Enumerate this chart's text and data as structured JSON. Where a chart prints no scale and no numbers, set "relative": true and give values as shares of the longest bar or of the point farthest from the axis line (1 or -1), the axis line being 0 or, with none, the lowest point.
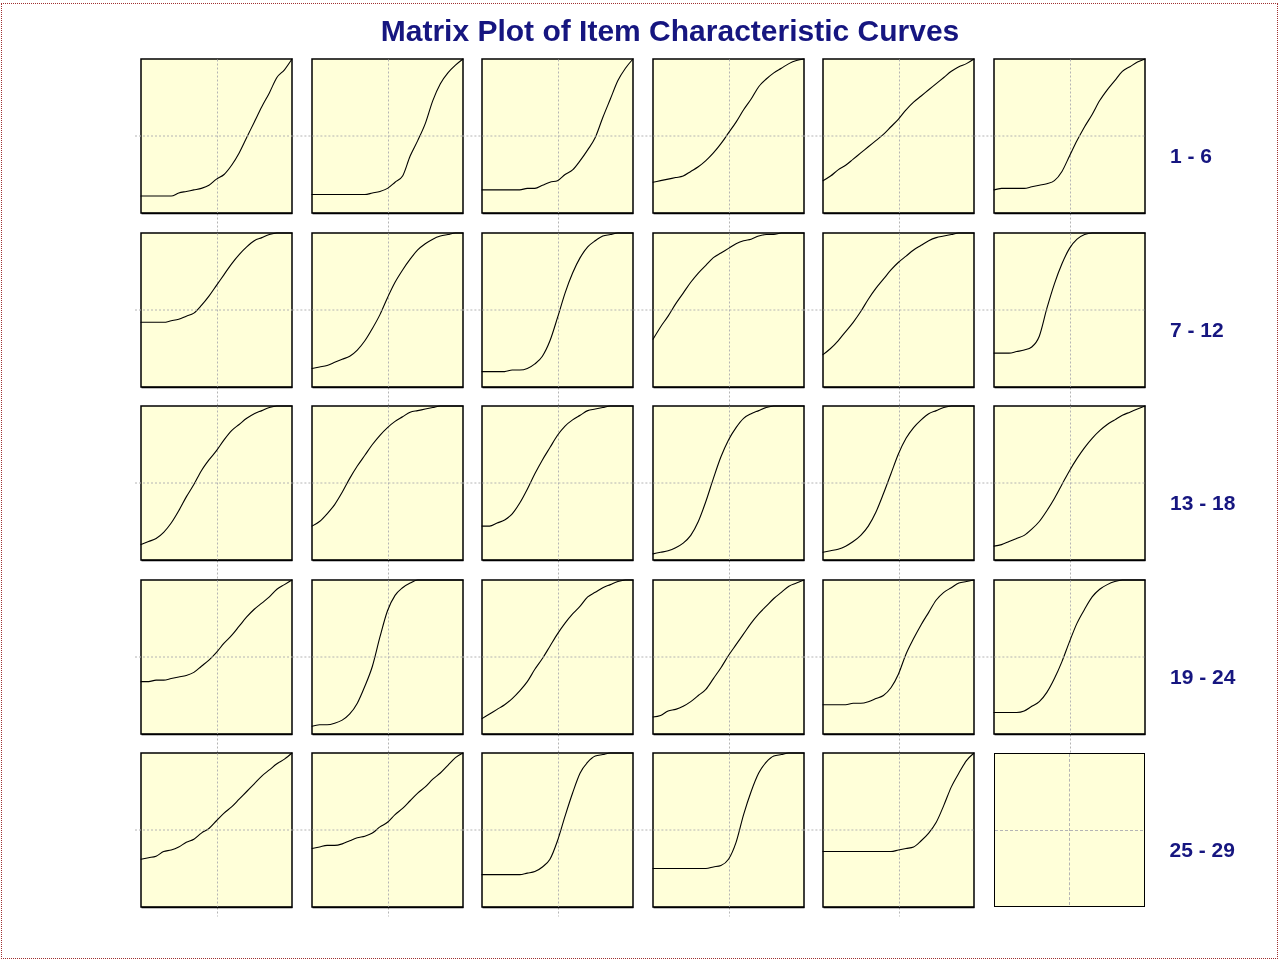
{
  "chart_data": [
    {
      "type": "other",
      "title": "Matrix Plot of Item Characteristic Curves"
    },
    {
      "type": "line",
      "relative": true,
      "grid": true,
      "tick_labels": false,
      "color": "#000000",
      "categories": [
        null,
        null,
        null,
        null,
        null,
        null,
        null,
        null,
        null,
        null,
        null,
        null,
        null,
        null,
        null,
        null,
        null,
        null,
        null,
        null,
        null
      ],
      "values": [
        0.11,
        0.11,
        0.11,
        0.11,
        0.11,
        0.13,
        0.14,
        0.15,
        0.16,
        0.18,
        0.22,
        0.25,
        0.31,
        0.39,
        0.49,
        0.59,
        0.69,
        0.78,
        0.88,
        0.93,
        1
      ]
    },
    {
      "type": "line",
      "relative": true,
      "grid": true,
      "tick_labels": false,
      "color": "#000000",
      "categories": [
        null,
        null,
        null,
        null,
        null,
        null,
        null,
        null,
        null,
        null,
        null,
        null,
        null,
        null,
        null,
        null,
        null,
        null,
        null,
        null,
        null
      ],
      "values": [
        0.12,
        0.12,
        0.12,
        0.12,
        0.12,
        0.12,
        0.12,
        0.12,
        0.13,
        0.14,
        0.16,
        0.2,
        0.24,
        0.37,
        0.47,
        0.58,
        0.73,
        0.84,
        0.91,
        0.96,
        1
      ]
    },
    {
      "type": "line",
      "relative": true,
      "grid": true,
      "tick_labels": false,
      "color": "#000000",
      "categories": [
        null,
        null,
        null,
        null,
        null,
        null,
        null,
        null,
        null,
        null,
        null,
        null,
        null,
        null,
        null,
        null,
        null,
        null,
        null,
        null,
        null
      ],
      "values": [
        0.15,
        0.15,
        0.15,
        0.15,
        0.15,
        0.15,
        0.16,
        0.16,
        0.18,
        0.2,
        0.21,
        0.25,
        0.28,
        0.34,
        0.41,
        0.49,
        0.62,
        0.74,
        0.86,
        0.94,
        1
      ]
    },
    {
      "type": "line",
      "relative": true,
      "grid": true,
      "tick_labels": false,
      "color": "#000000",
      "categories": [
        null,
        null,
        null,
        null,
        null,
        null,
        null,
        null,
        null,
        null,
        null,
        null,
        null,
        null,
        null,
        null,
        null,
        null,
        null,
        null,
        null
      ],
      "values": [
        0.2,
        0.21,
        0.22,
        0.23,
        0.24,
        0.27,
        0.3,
        0.34,
        0.39,
        0.45,
        0.52,
        0.59,
        0.67,
        0.74,
        0.82,
        0.87,
        0.91,
        0.94,
        0.97,
        0.99,
        1
      ]
    },
    {
      "type": "line",
      "relative": true,
      "grid": true,
      "tick_labels": false,
      "color": "#000000",
      "categories": [
        null,
        null,
        null,
        null,
        null,
        null,
        null,
        null,
        null,
        null,
        null,
        null,
        null,
        null,
        null,
        null,
        null,
        null,
        null,
        null,
        null
      ],
      "values": [
        0.21,
        0.24,
        0.28,
        0.31,
        0.35,
        0.39,
        0.43,
        0.47,
        0.51,
        0.56,
        0.61,
        0.67,
        0.72,
        0.76,
        0.8,
        0.84,
        0.88,
        0.92,
        0.95,
        0.97,
        1
      ]
    },
    {
      "type": "line",
      "relative": true,
      "grid": true,
      "tick_labels": false,
      "color": "#000000",
      "annotations": [
        "1 - 6"
      ],
      "categories": [
        null,
        null,
        null,
        null,
        null,
        null,
        null,
        null,
        null,
        null,
        null,
        null,
        null,
        null,
        null,
        null,
        null,
        null,
        null,
        null,
        null
      ],
      "values": [
        0.15,
        0.16,
        0.16,
        0.16,
        0.16,
        0.17,
        0.18,
        0.19,
        0.21,
        0.27,
        0.37,
        0.47,
        0.56,
        0.64,
        0.73,
        0.8,
        0.86,
        0.92,
        0.95,
        0.98,
        1
      ]
    },
    {
      "type": "line",
      "relative": true,
      "grid": true,
      "tick_labels": false,
      "color": "#000000",
      "categories": [
        null,
        null,
        null,
        null,
        null,
        null,
        null,
        null,
        null,
        null,
        null,
        null,
        null,
        null,
        null,
        null,
        null,
        null,
        null,
        null,
        null
      ],
      "values": [
        0.42,
        0.42,
        0.42,
        0.42,
        0.43,
        0.44,
        0.46,
        0.48,
        0.53,
        0.59,
        0.66,
        0.73,
        0.8,
        0.86,
        0.91,
        0.95,
        0.97,
        0.99,
        1,
        1,
        1
      ]
    },
    {
      "type": "line",
      "relative": true,
      "grid": true,
      "tick_labels": false,
      "color": "#000000",
      "categories": [
        null,
        null,
        null,
        null,
        null,
        null,
        null,
        null,
        null,
        null,
        null,
        null,
        null,
        null,
        null,
        null,
        null,
        null,
        null,
        null,
        null
      ],
      "values": [
        0.12,
        0.13,
        0.14,
        0.16,
        0.18,
        0.2,
        0.24,
        0.3,
        0.38,
        0.47,
        0.58,
        0.68,
        0.76,
        0.83,
        0.89,
        0.93,
        0.96,
        0.98,
        0.99,
        1,
        1
      ]
    },
    {
      "type": "line",
      "relative": true,
      "grid": true,
      "tick_labels": false,
      "color": "#000000",
      "categories": [
        null,
        null,
        null,
        null,
        null,
        null,
        null,
        null,
        null,
        null,
        null,
        null,
        null,
        null,
        null,
        null,
        null,
        null,
        null,
        null,
        null
      ],
      "values": [
        0.1,
        0.1,
        0.1,
        0.1,
        0.11,
        0.11,
        0.12,
        0.15,
        0.2,
        0.3,
        0.45,
        0.61,
        0.74,
        0.84,
        0.91,
        0.95,
        0.98,
        0.99,
        1,
        1,
        1
      ]
    },
    {
      "type": "line",
      "relative": true,
      "grid": true,
      "tick_labels": false,
      "color": "#000000",
      "categories": [
        null,
        null,
        null,
        null,
        null,
        null,
        null,
        null,
        null,
        null,
        null,
        null,
        null,
        null,
        null,
        null,
        null,
        null,
        null,
        null,
        null
      ],
      "values": [
        0.31,
        0.39,
        0.46,
        0.54,
        0.61,
        0.68,
        0.74,
        0.79,
        0.84,
        0.87,
        0.9,
        0.93,
        0.95,
        0.96,
        0.98,
        0.99,
        0.99,
        1,
        1,
        1,
        1
      ]
    },
    {
      "type": "line",
      "relative": true,
      "grid": true,
      "tick_labels": false,
      "color": "#000000",
      "categories": [
        null,
        null,
        null,
        null,
        null,
        null,
        null,
        null,
        null,
        null,
        null,
        null,
        null,
        null,
        null,
        null,
        null,
        null,
        null,
        null,
        null
      ],
      "values": [
        0.21,
        0.25,
        0.3,
        0.36,
        0.42,
        0.49,
        0.57,
        0.64,
        0.7,
        0.76,
        0.81,
        0.85,
        0.89,
        0.92,
        0.95,
        0.97,
        0.98,
        0.99,
        1,
        1,
        1
      ]
    },
    {
      "type": "line",
      "relative": true,
      "grid": true,
      "tick_labels": false,
      "color": "#000000",
      "annotations": [
        "7 - 12"
      ],
      "categories": [
        null,
        null,
        null,
        null,
        null,
        null,
        null,
        null,
        null,
        null,
        null,
        null,
        null,
        null,
        null,
        null,
        null,
        null,
        null,
        null,
        null
      ],
      "values": [
        0.22,
        0.22,
        0.22,
        0.23,
        0.24,
        0.26,
        0.33,
        0.51,
        0.67,
        0.8,
        0.9,
        0.96,
        0.99,
        1,
        1,
        1,
        1,
        1,
        1,
        1,
        1
      ]
    },
    {
      "type": "line",
      "relative": true,
      "grid": true,
      "tick_labels": false,
      "color": "#000000",
      "categories": [
        null,
        null,
        null,
        null,
        null,
        null,
        null,
        null,
        null,
        null,
        null,
        null,
        null,
        null,
        null,
        null,
        null,
        null,
        null,
        null,
        null
      ],
      "values": [
        0.1,
        0.12,
        0.14,
        0.18,
        0.24,
        0.32,
        0.41,
        0.49,
        0.58,
        0.65,
        0.71,
        0.78,
        0.84,
        0.88,
        0.92,
        0.95,
        0.97,
        0.99,
        1,
        1,
        1
      ]
    },
    {
      "type": "line",
      "relative": true,
      "grid": true,
      "tick_labels": false,
      "color": "#000000",
      "categories": [
        null,
        null,
        null,
        null,
        null,
        null,
        null,
        null,
        null,
        null,
        null,
        null,
        null,
        null,
        null,
        null,
        null,
        null,
        null,
        null,
        null
      ],
      "values": [
        0.22,
        0.25,
        0.3,
        0.36,
        0.44,
        0.53,
        0.61,
        0.68,
        0.75,
        0.81,
        0.86,
        0.9,
        0.93,
        0.96,
        0.97,
        0.98,
        0.99,
        1,
        1,
        1,
        1
      ]
    },
    {
      "type": "line",
      "relative": true,
      "grid": true,
      "tick_labels": false,
      "color": "#000000",
      "categories": [
        null,
        null,
        null,
        null,
        null,
        null,
        null,
        null,
        null,
        null,
        null,
        null,
        null,
        null,
        null,
        null,
        null,
        null,
        null,
        null,
        null
      ],
      "values": [
        0.22,
        0.22,
        0.24,
        0.26,
        0.3,
        0.37,
        0.46,
        0.56,
        0.65,
        0.73,
        0.81,
        0.87,
        0.91,
        0.94,
        0.97,
        0.98,
        0.99,
        1,
        1,
        1,
        1
      ]
    },
    {
      "type": "line",
      "relative": true,
      "grid": true,
      "tick_labels": false,
      "color": "#000000",
      "categories": [
        null,
        null,
        null,
        null,
        null,
        null,
        null,
        null,
        null,
        null,
        null,
        null,
        null,
        null,
        null,
        null,
        null,
        null,
        null,
        null,
        null
      ],
      "values": [
        0.04,
        0.05,
        0.06,
        0.08,
        0.11,
        0.16,
        0.25,
        0.38,
        0.53,
        0.67,
        0.78,
        0.86,
        0.92,
        0.95,
        0.97,
        0.99,
        1,
        1,
        1,
        1,
        1
      ]
    },
    {
      "type": "line",
      "relative": true,
      "grid": true,
      "tick_labels": false,
      "color": "#000000",
      "categories": [
        null,
        null,
        null,
        null,
        null,
        null,
        null,
        null,
        null,
        null,
        null,
        null,
        null,
        null,
        null,
        null,
        null,
        null,
        null,
        null,
        null
      ],
      "values": [
        0.05,
        0.06,
        0.07,
        0.09,
        0.12,
        0.16,
        0.22,
        0.31,
        0.43,
        0.56,
        0.69,
        0.79,
        0.86,
        0.91,
        0.95,
        0.97,
        0.99,
        1,
        1,
        1,
        1
      ]
    },
    {
      "type": "line",
      "relative": true,
      "grid": true,
      "tick_labels": false,
      "color": "#000000",
      "annotations": [
        "13 - 18"
      ],
      "categories": [
        null,
        null,
        null,
        null,
        null,
        null,
        null,
        null,
        null,
        null,
        null,
        null,
        null,
        null,
        null,
        null,
        null,
        null,
        null,
        null,
        null
      ],
      "values": [
        0.09,
        0.1,
        0.12,
        0.14,
        0.16,
        0.2,
        0.25,
        0.32,
        0.4,
        0.49,
        0.58,
        0.66,
        0.73,
        0.79,
        0.84,
        0.88,
        0.91,
        0.94,
        0.96,
        0.98,
        1
      ]
    },
    {
      "type": "line",
      "relative": true,
      "grid": true,
      "tick_labels": false,
      "color": "#000000",
      "categories": [
        null,
        null,
        null,
        null,
        null,
        null,
        null,
        null,
        null,
        null,
        null,
        null,
        null,
        null,
        null,
        null,
        null,
        null,
        null,
        null,
        null
      ],
      "values": [
        0.34,
        0.34,
        0.35,
        0.35,
        0.36,
        0.37,
        0.38,
        0.4,
        0.44,
        0.48,
        0.53,
        0.59,
        0.64,
        0.7,
        0.76,
        0.81,
        0.85,
        0.89,
        0.94,
        0.97,
        1
      ]
    },
    {
      "type": "line",
      "relative": true,
      "grid": true,
      "tick_labels": false,
      "color": "#000000",
      "categories": [
        null,
        null,
        null,
        null,
        null,
        null,
        null,
        null,
        null,
        null,
        null,
        null,
        null,
        null,
        null,
        null,
        null,
        null,
        null,
        null,
        null
      ],
      "values": [
        0.05,
        0.06,
        0.06,
        0.07,
        0.09,
        0.13,
        0.2,
        0.31,
        0.44,
        0.63,
        0.8,
        0.9,
        0.95,
        0.98,
        1,
        1,
        1,
        1,
        1,
        1,
        1
      ]
    },
    {
      "type": "line",
      "relative": true,
      "grid": true,
      "tick_labels": false,
      "color": "#000000",
      "categories": [
        null,
        null,
        null,
        null,
        null,
        null,
        null,
        null,
        null,
        null,
        null,
        null,
        null,
        null,
        null,
        null,
        null,
        null,
        null,
        null,
        null
      ],
      "values": [
        0.1,
        0.13,
        0.16,
        0.19,
        0.23,
        0.28,
        0.34,
        0.42,
        0.49,
        0.57,
        0.65,
        0.72,
        0.78,
        0.83,
        0.89,
        0.92,
        0.95,
        0.97,
        0.99,
        1,
        1
      ]
    },
    {
      "type": "line",
      "relative": true,
      "grid": true,
      "tick_labels": false,
      "color": "#000000",
      "categories": [
        null,
        null,
        null,
        null,
        null,
        null,
        null,
        null,
        null,
        null,
        null,
        null,
        null,
        null,
        null,
        null,
        null,
        null,
        null,
        null,
        null
      ],
      "values": [
        0.11,
        0.12,
        0.15,
        0.16,
        0.18,
        0.21,
        0.25,
        0.29,
        0.36,
        0.43,
        0.51,
        0.58,
        0.65,
        0.72,
        0.78,
        0.83,
        0.88,
        0.92,
        0.96,
        0.98,
        1
      ]
    },
    {
      "type": "line",
      "relative": true,
      "grid": true,
      "tick_labels": false,
      "color": "#000000",
      "categories": [
        null,
        null,
        null,
        null,
        null,
        null,
        null,
        null,
        null,
        null,
        null,
        null,
        null,
        null,
        null,
        null,
        null,
        null,
        null,
        null,
        null
      ],
      "values": [
        0.19,
        0.19,
        0.19,
        0.19,
        0.2,
        0.2,
        0.21,
        0.23,
        0.25,
        0.3,
        0.39,
        0.52,
        0.62,
        0.71,
        0.79,
        0.87,
        0.92,
        0.95,
        0.98,
        0.99,
        1
      ]
    },
    {
      "type": "line",
      "relative": true,
      "grid": true,
      "tick_labels": false,
      "color": "#000000",
      "annotations": [
        "19 - 24"
      ],
      "categories": [
        null,
        null,
        null,
        null,
        null,
        null,
        null,
        null,
        null,
        null,
        null,
        null,
        null,
        null,
        null,
        null,
        null,
        null,
        null,
        null,
        null
      ],
      "values": [
        0.14,
        0.14,
        0.14,
        0.14,
        0.15,
        0.18,
        0.21,
        0.27,
        0.36,
        0.47,
        0.6,
        0.72,
        0.81,
        0.89,
        0.94,
        0.97,
        0.99,
        1,
        1,
        1,
        1
      ]
    },
    {
      "type": "line",
      "relative": true,
      "grid": true,
      "tick_labels": false,
      "color": "#000000",
      "categories": [
        null,
        null,
        null,
        null,
        null,
        null,
        null,
        null,
        null,
        null,
        null,
        null,
        null,
        null,
        null,
        null,
        null,
        null,
        null,
        null,
        null
      ],
      "values": [
        0.31,
        0.32,
        0.33,
        0.36,
        0.37,
        0.39,
        0.42,
        0.44,
        0.48,
        0.51,
        0.56,
        0.61,
        0.65,
        0.7,
        0.75,
        0.8,
        0.85,
        0.89,
        0.93,
        0.96,
        1
      ]
    },
    {
      "type": "line",
      "relative": true,
      "grid": true,
      "tick_labels": false,
      "color": "#000000",
      "categories": [
        null,
        null,
        null,
        null,
        null,
        null,
        null,
        null,
        null,
        null,
        null,
        null,
        null,
        null,
        null,
        null,
        null,
        null,
        null,
        null,
        null
      ],
      "values": [
        0.38,
        0.39,
        0.4,
        0.4,
        0.41,
        0.43,
        0.45,
        0.46,
        0.48,
        0.52,
        0.55,
        0.6,
        0.64,
        0.69,
        0.74,
        0.78,
        0.83,
        0.87,
        0.92,
        0.97,
        1
      ]
    },
    {
      "type": "line",
      "relative": true,
      "grid": true,
      "tick_labels": false,
      "color": "#000000",
      "categories": [
        null,
        null,
        null,
        null,
        null,
        null,
        null,
        null,
        null,
        null,
        null,
        null,
        null,
        null,
        null,
        null,
        null,
        null,
        null,
        null,
        null
      ],
      "values": [
        0.21,
        0.21,
        0.21,
        0.21,
        0.21,
        0.21,
        0.22,
        0.23,
        0.26,
        0.31,
        0.43,
        0.59,
        0.74,
        0.87,
        0.94,
        0.98,
        0.99,
        1,
        1,
        1,
        1
      ]
    },
    {
      "type": "line",
      "relative": true,
      "grid": true,
      "tick_labels": false,
      "color": "#000000",
      "categories": [
        null,
        null,
        null,
        null,
        null,
        null,
        null,
        null,
        null,
        null,
        null,
        null,
        null,
        null,
        null,
        null,
        null,
        null,
        null,
        null,
        null
      ],
      "values": [
        0.25,
        0.25,
        0.25,
        0.25,
        0.25,
        0.25,
        0.25,
        0.25,
        0.26,
        0.27,
        0.31,
        0.42,
        0.6,
        0.75,
        0.87,
        0.94,
        0.98,
        0.99,
        1,
        1,
        1
      ]
    },
    {
      "type": "line",
      "relative": true,
      "grid": true,
      "tick_labels": false,
      "color": "#000000",
      "annotations": [
        "25 - 29"
      ],
      "categories": [
        null,
        null,
        null,
        null,
        null,
        null,
        null,
        null,
        null,
        null,
        null,
        null,
        null,
        null,
        null,
        null,
        null,
        null,
        null,
        null,
        null
      ],
      "values": [
        0.36,
        0.36,
        0.36,
        0.36,
        0.36,
        0.36,
        0.36,
        0.36,
        0.36,
        0.36,
        0.37,
        0.38,
        0.39,
        0.43,
        0.48,
        0.55,
        0.66,
        0.78,
        0.87,
        0.95,
        1
      ]
    }
  ]
}
